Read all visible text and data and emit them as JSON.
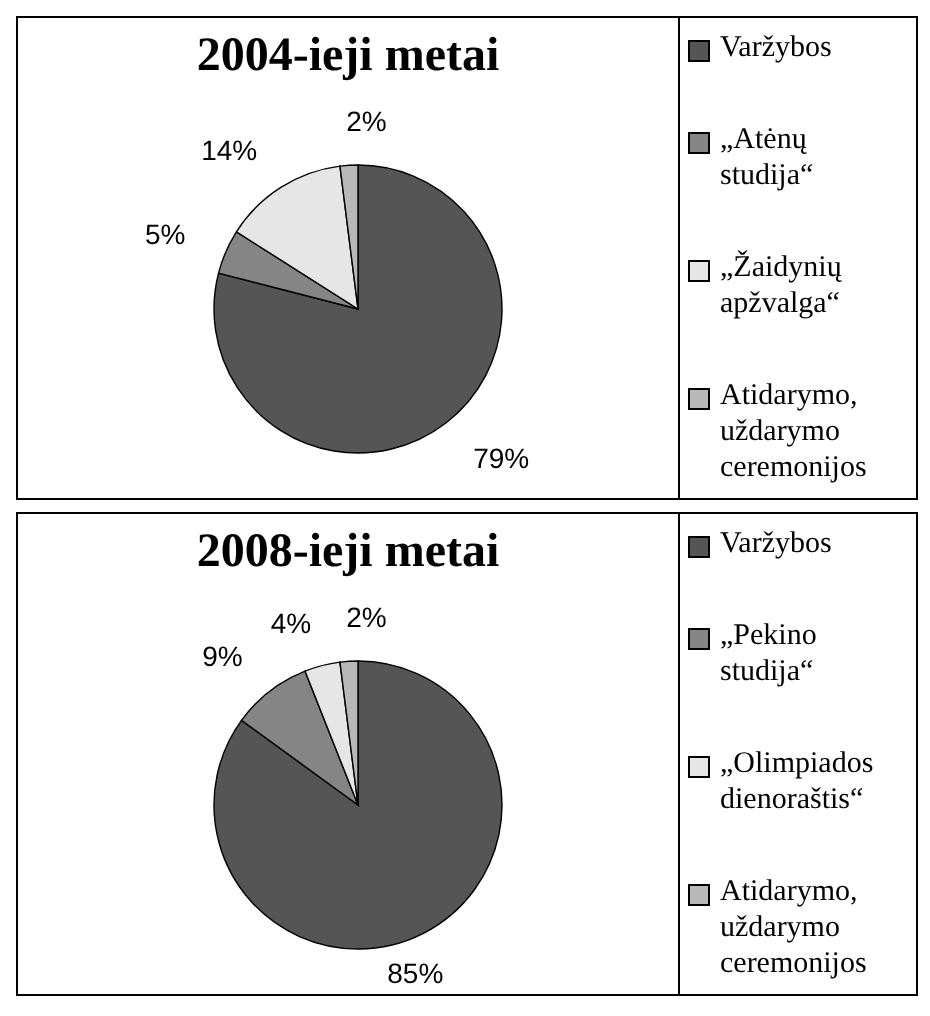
{
  "chart_data": [
    {
      "type": "pie",
      "title": "2004-ieji metai",
      "categories": [
        "Varžybos",
        "„Atėnų studija“",
        "„Žaidynių apžvalga“",
        "Atidarymo, uždarymo ceremonijos"
      ],
      "values": [
        79,
        5,
        14,
        2
      ],
      "colors": [
        "#555555",
        "#858585",
        "#e6e6e6",
        "#b8b8b8"
      ],
      "value_labels": [
        "79%",
        "5%",
        "14%",
        "2%"
      ],
      "legend": "right"
    },
    {
      "type": "pie",
      "title": "2008-ieji metai",
      "categories": [
        "Varžybos",
        "„Pekino studija“",
        "„Olimpiados dienoraštis“",
        "Atidarymo, uždarymo ceremonijos"
      ],
      "values": [
        85,
        9,
        4,
        2
      ],
      "colors": [
        "#555555",
        "#858585",
        "#e6e6e6",
        "#b8b8b8"
      ],
      "value_labels": [
        "85%",
        "9%",
        "4%",
        "2%"
      ],
      "legend": "right"
    }
  ]
}
